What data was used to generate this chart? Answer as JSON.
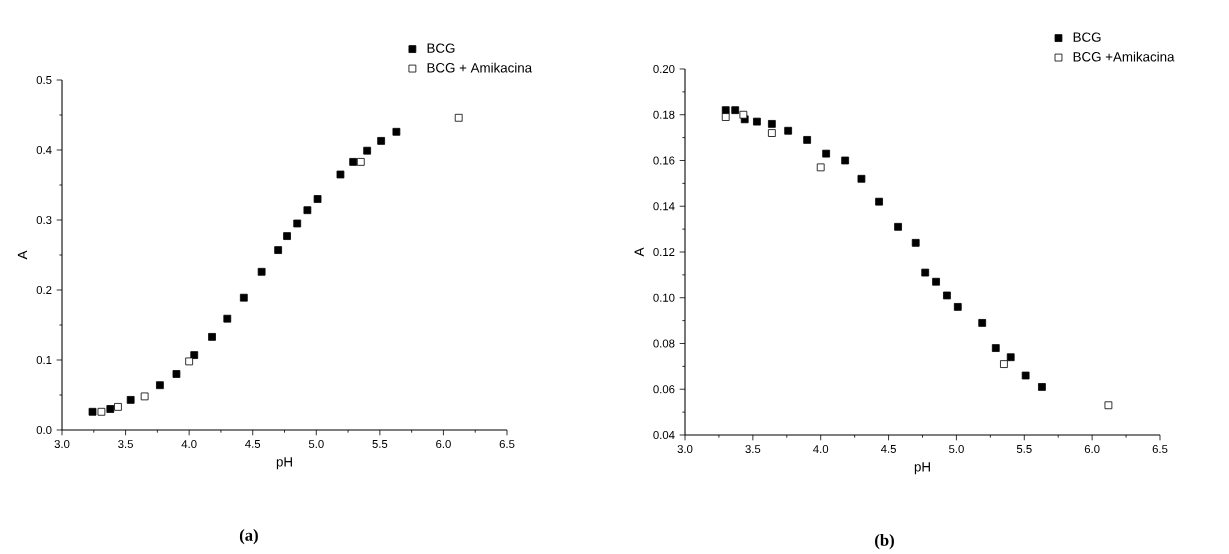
{
  "chart_data": [
    {
      "type": "scatter",
      "xlabel": "pH",
      "ylabel": "A",
      "xlim": [
        3.0,
        6.5
      ],
      "ylim": [
        0.0,
        0.5
      ],
      "xticks": [
        {
          "value": 3.0,
          "label": "3.0"
        },
        {
          "value": 3.5,
          "label": "3.5"
        },
        {
          "value": 4.0,
          "label": "4.0"
        },
        {
          "value": 4.5,
          "label": "4.5"
        },
        {
          "value": 5.0,
          "label": "5.0"
        },
        {
          "value": 5.5,
          "label": "5.5"
        },
        {
          "value": 6.0,
          "label": "6.0"
        },
        {
          "value": 6.5,
          "label": "6.5"
        }
      ],
      "yticks": [
        {
          "value": 0.0,
          "label": "0.0"
        },
        {
          "value": 0.1,
          "label": "0.1"
        },
        {
          "value": 0.2,
          "label": "0.2"
        },
        {
          "value": 0.3,
          "label": "0.3"
        },
        {
          "value": 0.4,
          "label": "0.4"
        },
        {
          "value": 0.5,
          "label": "0.5"
        }
      ],
      "marker": "square",
      "legend": "top right",
      "grid": false,
      "annotations": [
        "(a)"
      ],
      "series": [
        {
          "name": "BCG",
          "color": "#000000",
          "x": [
            3.24,
            3.38,
            3.54,
            3.77,
            3.9,
            4.04,
            4.18,
            4.3,
            4.43,
            4.57,
            4.7,
            4.77,
            4.85,
            4.93,
            5.01,
            5.19,
            5.29,
            5.4,
            5.51,
            5.63
          ],
          "values": [
            0.026,
            0.03,
            0.043,
            0.064,
            0.08,
            0.107,
            0.133,
            0.159,
            0.189,
            0.226,
            0.257,
            0.277,
            0.295,
            0.314,
            0.33,
            0.365,
            0.383,
            0.399,
            0.413,
            0.426
          ]
        },
        {
          "name": "BCG + Amikacina",
          "color": "#000000",
          "x": [
            3.31,
            3.44,
            3.65,
            4.0,
            5.35,
            6.12
          ],
          "values": [
            0.026,
            0.033,
            0.048,
            0.098,
            0.383,
            0.446
          ]
        }
      ]
    },
    {
      "type": "scatter",
      "xlabel": "pH",
      "ylabel": "A",
      "xlim": [
        3.0,
        6.5
      ],
      "ylim": [
        0.04,
        0.2
      ],
      "xticks": [
        {
          "value": 3.0,
          "label": "3.0"
        },
        {
          "value": 3.5,
          "label": "3.5"
        },
        {
          "value": 4.0,
          "label": "4.0"
        },
        {
          "value": 4.5,
          "label": "4.5"
        },
        {
          "value": 5.0,
          "label": "5.0"
        },
        {
          "value": 5.5,
          "label": "5.5"
        },
        {
          "value": 6.0,
          "label": "6.0"
        },
        {
          "value": 6.5,
          "label": "6.5"
        }
      ],
      "yticks": [
        {
          "value": 0.04,
          "label": "0.04"
        },
        {
          "value": 0.06,
          "label": "0.06"
        },
        {
          "value": 0.08,
          "label": "0.08"
        },
        {
          "value": 0.1,
          "label": "0.10"
        },
        {
          "value": 0.12,
          "label": "0.12"
        },
        {
          "value": 0.14,
          "label": "0.14"
        },
        {
          "value": 0.16,
          "label": "0.16"
        },
        {
          "value": 0.18,
          "label": "0.18"
        },
        {
          "value": 0.2,
          "label": "0.20"
        }
      ],
      "marker": "square",
      "legend": "top right",
      "grid": false,
      "annotations": [
        "(b)"
      ],
      "series": [
        {
          "name": "BCG",
          "color": "#000000",
          "x": [
            3.3,
            3.37,
            3.44,
            3.53,
            3.64,
            3.76,
            3.9,
            4.04,
            4.18,
            4.3,
            4.43,
            4.57,
            4.7,
            4.77,
            4.85,
            4.93,
            5.01,
            5.19,
            5.29,
            5.4,
            5.51,
            5.63
          ],
          "values": [
            0.182,
            0.182,
            0.178,
            0.177,
            0.176,
            0.173,
            0.169,
            0.163,
            0.16,
            0.152,
            0.142,
            0.131,
            0.124,
            0.111,
            0.107,
            0.101,
            0.096,
            0.089,
            0.078,
            0.074,
            0.066,
            0.061
          ]
        },
        {
          "name": "BCG +Amikacina",
          "color": "#000000",
          "x": [
            3.3,
            3.43,
            3.64,
            4.0,
            5.35,
            6.12
          ],
          "values": [
            0.179,
            0.18,
            0.172,
            0.157,
            0.071,
            0.053
          ]
        }
      ]
    }
  ]
}
